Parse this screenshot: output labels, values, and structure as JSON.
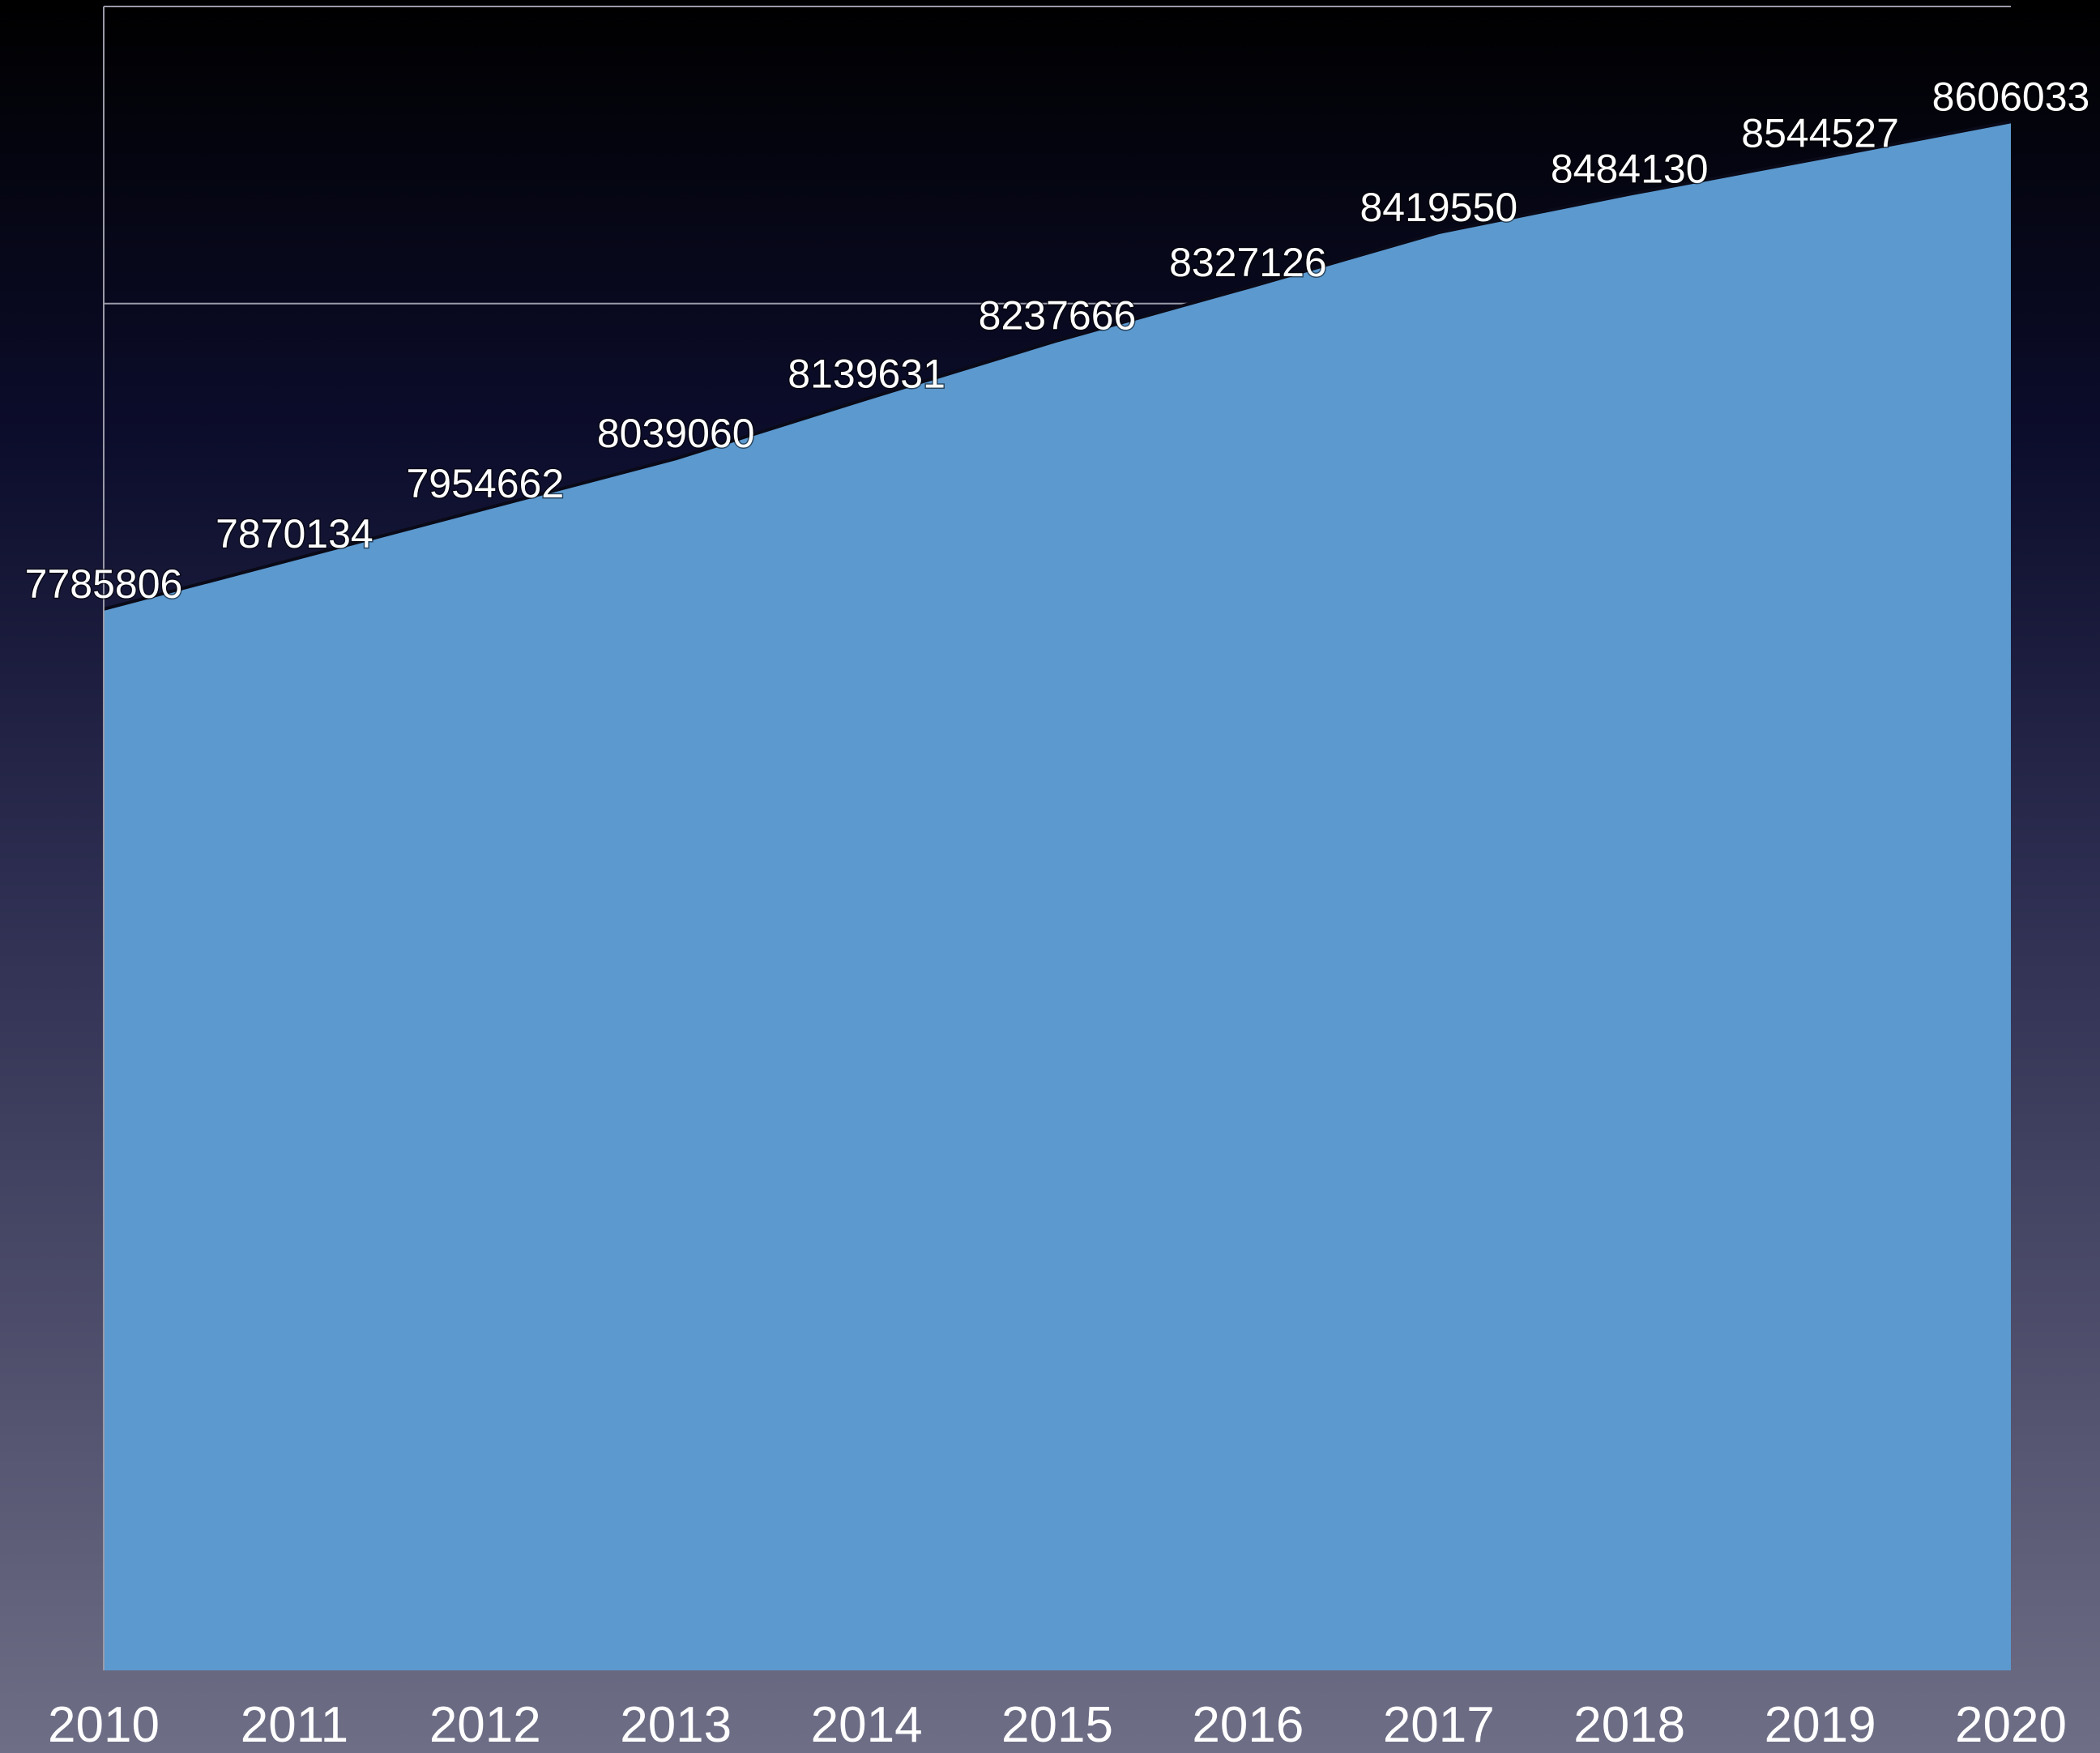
{
  "chart_data": {
    "type": "area",
    "title": "",
    "xlabel": "",
    "ylabel": "",
    "categories": [
      "2010",
      "2011",
      "2012",
      "2013",
      "2014",
      "2015",
      "2016",
      "2017",
      "2018",
      "2019",
      "2020"
    ],
    "series": [
      {
        "values": [
          7785806,
          7870134,
          7954662,
          8039060,
          8139631,
          8237666,
          8327126,
          8419550,
          8484130,
          8544527,
          8606033
        ]
      }
    ],
    "ylim": [
      6000000,
      8800000
    ],
    "gridlines": [
      8800000,
      8300000
    ],
    "grid": true,
    "legend": "none",
    "data_labels": true,
    "colors": {
      "area": "#5b99cf",
      "line": "#0a0a18",
      "grid": "#9a9aa8",
      "text": "#ffffff"
    }
  }
}
